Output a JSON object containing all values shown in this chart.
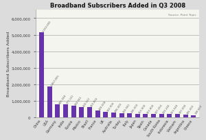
{
  "title": "Broadband Subscribers Added in Q3 2008",
  "source": "Source: Point Topic",
  "ylabel": "Broadband Subscribers Added",
  "categories": [
    "China",
    "USA",
    "Germany",
    "India",
    "Russia",
    "Mexico",
    "Brazil",
    "France",
    "UK",
    "Australia",
    "Turkey",
    "Italy",
    "Japan",
    "Spain",
    "Canada",
    "South Korea",
    "Indonesia",
    "Vietnam",
    "Argentina",
    "Greece"
  ],
  "values": [
    5162660,
    1867805,
    805048,
    777141,
    692561,
    620522,
    610800,
    428508,
    322900,
    296400,
    250560,
    245000,
    210900,
    210800,
    207264,
    203246,
    221548,
    197090,
    185000,
    148600
  ],
  "bar_color": "#6633aa",
  "bar_annotations": [
    "5,162,660",
    "1,867,805",
    "805,048",
    "777,141",
    "692,561",
    "620,522",
    "610,800",
    "428,508",
    "322,900",
    "296,400",
    "250,560",
    "245,000",
    "210,900",
    "210,800",
    "207,264",
    "203,246",
    "221,548",
    "197,090",
    "185,000",
    "148,600"
  ],
  "ylim": [
    0,
    6500000
  ],
  "yticks": [
    0,
    1000000,
    2000000,
    3000000,
    4000000,
    5000000,
    6000000
  ],
  "bg_color": "#dcdcdc",
  "plot_bg": "#f5f5f0"
}
